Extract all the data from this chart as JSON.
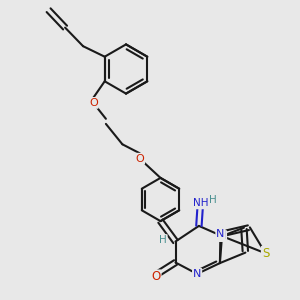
{
  "bg_color": "#e8e8e8",
  "bond_color": "#1a1a1a",
  "bond_width": 1.5,
  "atom_colors": {
    "C": "#1a1a1a",
    "H": "#4a9090",
    "N": "#2222cc",
    "O": "#cc2200",
    "S": "#aaaa00"
  },
  "font_size": 7.5
}
